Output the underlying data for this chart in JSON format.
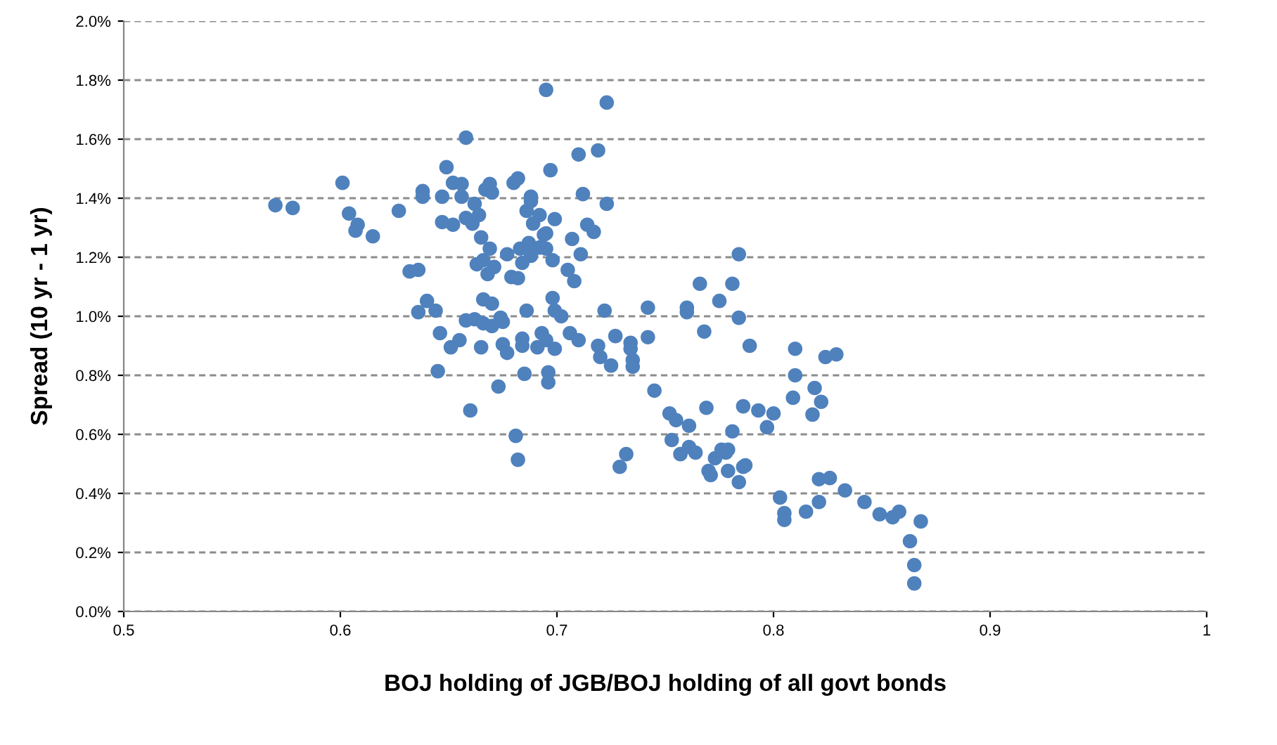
{
  "chart_data": {
    "type": "scatter",
    "xlabel": "BOJ holding of JGB/BOJ holding of all govt bonds",
    "ylabel": "Spread (10 yr - 1 yr)",
    "xlim": [
      0.5,
      1
    ],
    "xticks": [
      0.5,
      0.6,
      0.7,
      0.8,
      0.9,
      {
        "value": 1,
        "label": "1"
      }
    ],
    "ylim": [
      0,
      2.0
    ],
    "yticks": [
      {
        "value": 0,
        "label": "0.0%"
      },
      {
        "value": 0.2,
        "label": "0.2%"
      },
      {
        "value": 0.4,
        "label": "0.4%"
      },
      {
        "value": 0.6,
        "label": "0.6%"
      },
      {
        "value": 0.8,
        "label": "0.8%"
      },
      {
        "value": 1.0,
        "label": "1.0%"
      },
      {
        "value": 1.2,
        "label": "1.2%"
      },
      {
        "value": 1.4,
        "label": "1.4%"
      },
      {
        "value": 1.6,
        "label": "1.6%"
      },
      {
        "value": 1.8,
        "label": "1.8%"
      },
      {
        "value": 2.0,
        "label": "2.0%"
      }
    ],
    "grid": "y",
    "marker": "circle",
    "series": [
      {
        "color": "#4f81bd",
        "x": [
          0.57,
          0.578,
          0.601,
          0.604,
          0.607,
          0.608,
          0.615,
          0.627,
          0.632,
          0.636,
          0.638,
          0.638,
          0.636,
          0.64,
          0.644,
          0.645,
          0.646,
          0.647,
          0.647,
          0.649,
          0.651,
          0.652,
          0.652,
          0.655,
          0.656,
          0.656,
          0.658,
          0.658,
          0.658,
          0.66,
          0.661,
          0.662,
          0.662,
          0.663,
          0.664,
          0.665,
          0.666,
          0.666,
          0.666,
          0.667,
          0.665,
          0.668,
          0.669,
          0.669,
          0.67,
          0.67,
          0.671,
          0.67,
          0.673,
          0.674,
          0.675,
          0.675,
          0.677,
          0.677,
          0.679,
          0.68,
          0.681,
          0.682,
          0.682,
          0.683,
          0.682,
          0.684,
          0.684,
          0.685,
          0.684,
          0.686,
          0.686,
          0.687,
          0.688,
          0.688,
          0.688,
          0.689,
          0.691,
          0.692,
          0.693,
          0.692,
          0.694,
          0.695,
          0.695,
          0.695,
          0.695,
          0.696,
          0.696,
          0.697,
          0.698,
          0.698,
          0.699,
          0.699,
          0.699,
          0.702,
          0.705,
          0.706,
          0.707,
          0.708,
          0.71,
          0.71,
          0.711,
          0.712,
          0.714,
          0.717,
          0.719,
          0.719,
          0.72,
          0.722,
          0.723,
          0.723,
          0.725,
          0.727,
          0.729,
          0.732,
          0.734,
          0.734,
          0.735,
          0.735,
          0.742,
          0.742,
          0.745,
          0.752,
          0.753,
          0.755,
          0.757,
          0.76,
          0.76,
          0.761,
          0.761,
          0.764,
          0.766,
          0.768,
          0.769,
          0.77,
          0.771,
          0.773,
          0.775,
          0.776,
          0.778,
          0.779,
          0.779,
          0.781,
          0.781,
          0.784,
          0.784,
          0.784,
          0.786,
          0.787,
          0.789,
          0.786,
          0.793,
          0.797,
          0.8,
          0.803,
          0.805,
          0.805,
          0.809,
          0.81,
          0.81,
          0.815,
          0.818,
          0.819,
          0.821,
          0.821,
          0.822,
          0.824,
          0.826,
          0.829,
          0.833,
          0.842,
          0.849,
          0.855,
          0.858,
          0.863,
          0.865,
          0.865,
          0.868
        ],
        "values": [
          1.376,
          1.367,
          1.452,
          1.348,
          1.29,
          1.31,
          1.271,
          1.357,
          1.152,
          1.157,
          1.424,
          1.405,
          1.014,
          1.052,
          1.019,
          0.814,
          0.943,
          1.405,
          1.319,
          1.505,
          0.895,
          1.452,
          1.31,
          0.919,
          1.448,
          1.405,
          1.605,
          1.333,
          0.986,
          0.681,
          1.314,
          1.381,
          0.99,
          1.176,
          1.343,
          1.267,
          1.057,
          1.19,
          0.976,
          1.429,
          0.895,
          1.143,
          1.448,
          1.229,
          1.419,
          1.043,
          1.167,
          0.967,
          0.762,
          0.995,
          0.905,
          0.981,
          0.876,
          1.21,
          1.133,
          1.452,
          0.595,
          1.467,
          0.514,
          1.229,
          1.129,
          0.924,
          0.9,
          0.805,
          1.181,
          1.019,
          1.357,
          1.248,
          1.205,
          1.39,
          1.405,
          1.314,
          0.895,
          1.343,
          0.943,
          1.233,
          1.276,
          1.229,
          1.281,
          0.919,
          1.767,
          0.81,
          0.776,
          1.495,
          1.19,
          1.062,
          1.019,
          0.89,
          1.329,
          1.0,
          1.157,
          0.943,
          1.262,
          1.119,
          0.919,
          1.548,
          1.21,
          1.414,
          1.31,
          1.286,
          0.9,
          1.562,
          0.862,
          1.019,
          1.724,
          1.381,
          0.833,
          0.933,
          0.49,
          0.533,
          0.89,
          0.91,
          0.852,
          0.829,
          1.029,
          0.929,
          0.748,
          0.671,
          0.581,
          0.648,
          0.533,
          1.029,
          1.014,
          0.629,
          0.557,
          0.538,
          1.11,
          0.948,
          0.69,
          0.476,
          0.462,
          0.519,
          1.052,
          0.548,
          0.538,
          0.548,
          0.476,
          0.61,
          1.11,
          0.438,
          1.21,
          0.995,
          0.49,
          0.495,
          0.9,
          0.695,
          0.681,
          0.624,
          0.671,
          0.386,
          0.333,
          0.31,
          0.724,
          0.89,
          0.8,
          0.338,
          0.667,
          0.757,
          0.448,
          0.371,
          0.71,
          0.862,
          0.452,
          0.871,
          0.41,
          0.371,
          0.329,
          0.319,
          0.338,
          0.238,
          0.157,
          0.095,
          0.305
        ]
      }
    ]
  }
}
